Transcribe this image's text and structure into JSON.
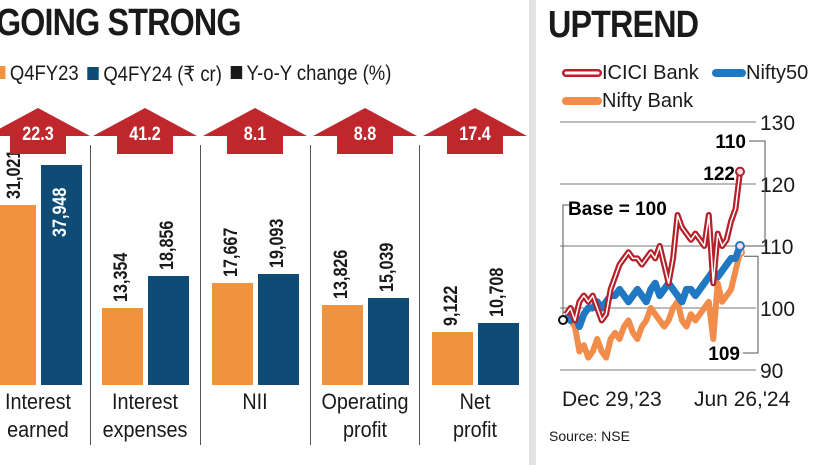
{
  "left": {
    "title": "GOING STRONG",
    "legend": [
      {
        "label": "Q4FY23",
        "color": "#f0923e"
      },
      {
        "label": "Q4FY24 (₹ cr)",
        "color": "#0f4c75"
      },
      {
        "label": "Y-o-Y change (%)",
        "color": "#1a1a1a"
      }
    ]
  },
  "right": {
    "title": "UPTREND",
    "source": "Source: NSE",
    "base_label": "Base = 100"
  },
  "chart_data": [
    {
      "type": "bar",
      "title": "GOING STRONG",
      "categories": [
        "Interest earned",
        "Interest expenses",
        "NII",
        "Operating profit",
        "Net profit"
      ],
      "category_lines": [
        [
          "Interest",
          "earned"
        ],
        [
          "Interest",
          "expenses"
        ],
        [
          "NII",
          ""
        ],
        [
          "Operating",
          "profit"
        ],
        [
          "Net",
          "profit"
        ]
      ],
      "series": [
        {
          "name": "Q4FY23",
          "color": "#f0923e",
          "values": [
            31021,
            13354,
            17667,
            13826,
            9122
          ],
          "labels": [
            "31,021",
            "13,354",
            "17,667",
            "13,826",
            "9,122"
          ]
        },
        {
          "name": "Q4FY24 (₹ cr)",
          "color": "#0f4c75",
          "values": [
            37948,
            18856,
            19093,
            15039,
            10708
          ],
          "labels": [
            "37,948",
            "18,856",
            "19,093",
            "15,039",
            "10,708"
          ]
        }
      ],
      "yoy_change": {
        "name": "Y-o-Y change (%)",
        "values": [
          "22.3",
          "41.2",
          "8.1",
          "8.8",
          "17.4"
        ],
        "color": "#c0272d"
      }
    },
    {
      "type": "line",
      "title": "UPTREND",
      "x_labels": [
        "Dec 29,'23",
        "Jun 26,'24"
      ],
      "ylim": [
        90,
        130
      ],
      "yticks": [
        "90",
        "100",
        "110",
        "120",
        "130"
      ],
      "grid": true,
      "legend": "top",
      "series": [
        {
          "name": "ICICI Bank",
          "color": "#b5202a",
          "end_label": "122",
          "values": [
            99,
            100,
            98,
            101,
            102,
            101,
            102,
            100,
            98,
            99,
            103,
            105,
            107,
            108,
            109,
            108,
            108,
            107,
            108,
            109,
            108,
            110,
            107,
            104,
            108,
            115,
            113,
            112,
            111,
            112,
            111,
            110,
            115,
            104,
            112,
            110,
            111,
            114,
            116,
            122
          ]
        },
        {
          "name": "Nifty50",
          "color": "#1f78c1",
          "end_label": "110",
          "values": [
            99,
            98,
            99,
            97,
            99,
            100,
            100,
            101,
            100,
            101,
            102,
            102,
            103,
            102,
            101,
            102,
            103,
            102,
            101,
            103,
            104,
            102,
            103,
            104,
            103,
            102,
            101,
            103,
            103,
            102,
            103,
            104,
            105,
            106,
            105,
            106,
            107,
            108,
            108,
            110
          ]
        },
        {
          "name": "Nifty Bank",
          "color": "#f28c4a",
          "end_label": "109",
          "values": [
            99,
            98,
            97,
            93,
            94,
            92,
            93,
            95,
            93,
            92,
            95,
            96,
            95,
            97,
            98,
            96,
            95,
            97,
            98,
            100,
            99,
            98,
            97,
            98,
            100,
            101,
            98,
            97,
            99,
            98,
            99,
            100,
            101,
            95,
            104,
            101,
            102,
            103,
            106,
            109
          ]
        }
      ]
    }
  ]
}
